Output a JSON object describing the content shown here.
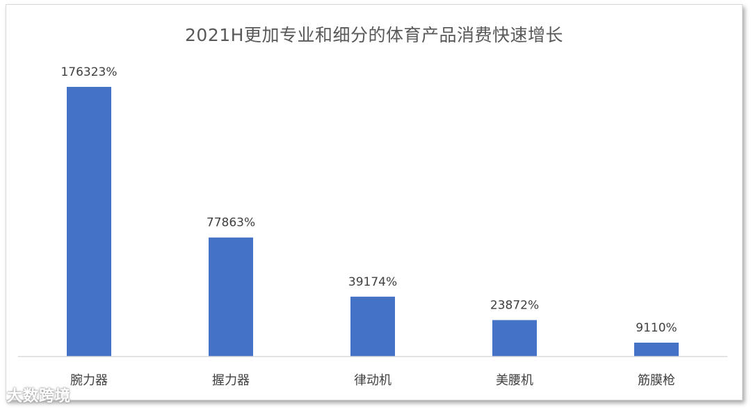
{
  "chart_data": {
    "type": "bar",
    "title": "2021H更加专业和细分的体育产品消费快速增长",
    "categories": [
      "腕力器",
      "握力器",
      "律动机",
      "美腰机",
      "筋膜枪"
    ],
    "values": [
      176323,
      77863,
      39174,
      23872,
      9110
    ],
    "data_labels": [
      "176323%",
      "77863%",
      "39174%",
      "23872%",
      "9110%"
    ],
    "unit": "%",
    "ylim": [
      0,
      180000
    ],
    "bar_color": "#4472c4",
    "grid": false,
    "legend": "none"
  },
  "watermark": {
    "text": "大数跨境"
  }
}
